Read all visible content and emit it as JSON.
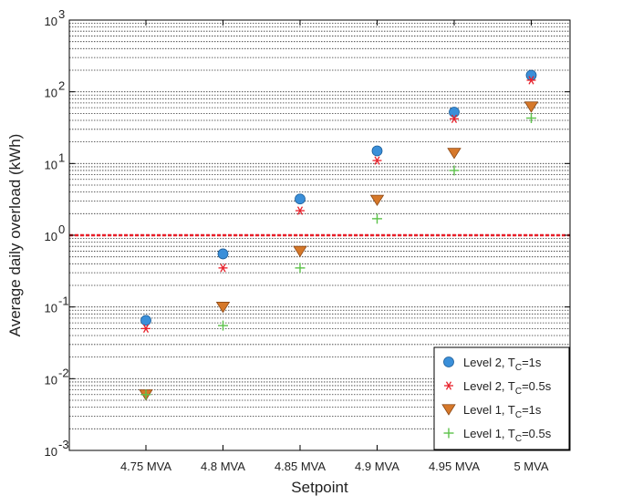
{
  "chart_data": {
    "type": "scatter",
    "y_scale": "log",
    "ylim": [
      0.001,
      1000
    ],
    "grid": "horizontal minor and major, dotted",
    "legend_position": "bottom-right",
    "title": "",
    "xlabel": "Setpoint",
    "ylabel": "Average daily overload (kWh)",
    "categories": [
      "4.75 MVA",
      "4.8 MVA",
      "4.85 MVA",
      "4.9 MVA",
      "4.95 MVA",
      "5 MVA"
    ],
    "y_ticks": [
      {
        "value": 0.001,
        "base": "10",
        "exp": "-3"
      },
      {
        "value": 0.01,
        "base": "10",
        "exp": "-2"
      },
      {
        "value": 0.1,
        "base": "10",
        "exp": "-1"
      },
      {
        "value": 1,
        "base": "10",
        "exp": "0"
      },
      {
        "value": 10,
        "base": "10",
        "exp": "1"
      },
      {
        "value": 100,
        "base": "10",
        "exp": "2"
      },
      {
        "value": 1000,
        "base": "10",
        "exp": "3"
      }
    ],
    "reference_line": {
      "value": 1,
      "color": "#e8202a"
    },
    "series": [
      {
        "name": "Level 2, T_C=1s",
        "legend_main": "Level 2, T",
        "legend_sub": "C",
        "legend_tail": "=1s",
        "marker": "circle",
        "color": "#3a8fd9",
        "values": [
          0.065,
          0.55,
          3.2,
          15,
          52,
          170
        ]
      },
      {
        "name": "Level 2, T_C=0.5s",
        "legend_main": "Level 2, T",
        "legend_sub": "C",
        "legend_tail": "=0.5s",
        "marker": "asterisk",
        "color": "#e8202a",
        "values": [
          0.05,
          0.35,
          2.2,
          11,
          42,
          145
        ]
      },
      {
        "name": "Level 1, T_C=1s",
        "legend_main": "Level 1, T",
        "legend_sub": "C",
        "legend_tail": "=1s",
        "marker": "triangle-down",
        "color": "#d6782a",
        "values": [
          0.006,
          0.1,
          0.6,
          3.1,
          14,
          62
        ]
      },
      {
        "name": "Level 1, T_C=0.5s",
        "legend_main": "Level 1, T",
        "legend_sub": "C",
        "legend_tail": "=0.5s",
        "marker": "plus",
        "color": "#5cc24a",
        "values": [
          0.006,
          0.055,
          0.35,
          1.7,
          8,
          43
        ]
      }
    ]
  }
}
